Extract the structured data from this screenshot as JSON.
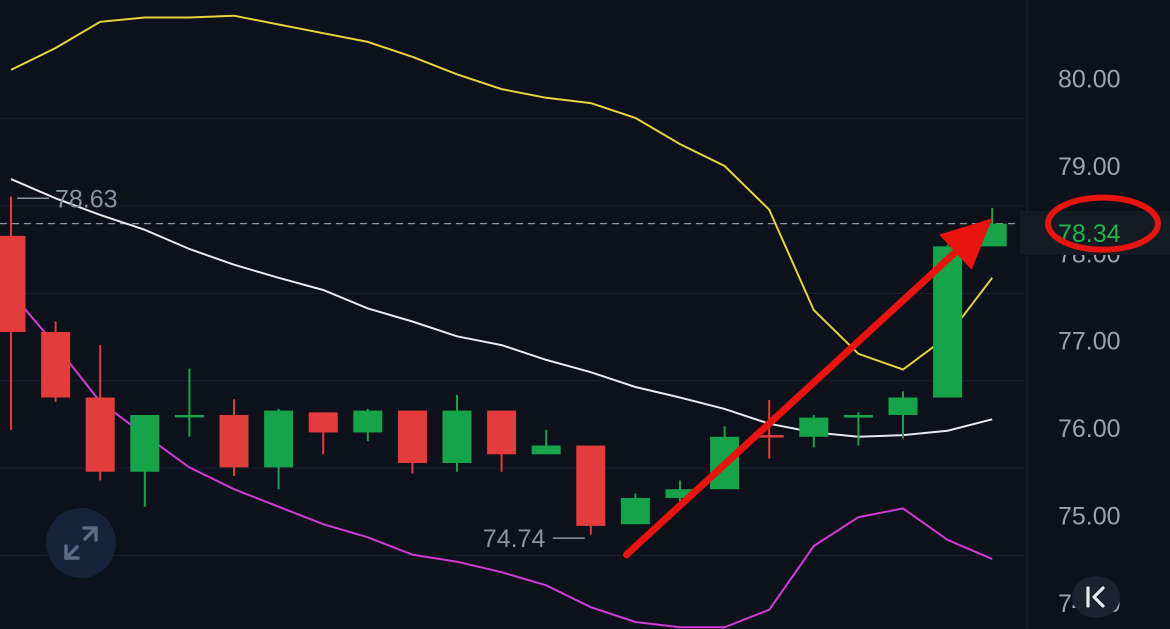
{
  "chart_data": {
    "type": "candlestick",
    "y_ticks": [
      "80.00",
      "79.00",
      "78.00",
      "77.00",
      "76.00",
      "75.00",
      "74.00"
    ],
    "ylim": [
      73.7,
      80.9
    ],
    "last_price": {
      "value": 78.34,
      "label": "78.34"
    },
    "high_marker": {
      "value": 78.63,
      "label": "78.63"
    },
    "low_marker": {
      "value": 74.74,
      "label": "74.74"
    },
    "candles": [
      {
        "o": 78.2,
        "h": 78.65,
        "l": 75.98,
        "c": 77.1
      },
      {
        "o": 77.1,
        "h": 77.22,
        "l": 76.3,
        "c": 76.35
      },
      {
        "o": 76.35,
        "h": 76.95,
        "l": 75.4,
        "c": 75.5
      },
      {
        "o": 75.5,
        "h": 76.15,
        "l": 75.1,
        "c": 76.15
      },
      {
        "o": 76.15,
        "h": 76.68,
        "l": 75.9,
        "c": 76.15
      },
      {
        "o": 76.15,
        "h": 76.33,
        "l": 75.45,
        "c": 75.55
      },
      {
        "o": 75.55,
        "h": 76.22,
        "l": 75.3,
        "c": 76.2
      },
      {
        "o": 76.18,
        "h": 76.18,
        "l": 75.7,
        "c": 75.95
      },
      {
        "o": 75.95,
        "h": 76.22,
        "l": 75.85,
        "c": 76.2
      },
      {
        "o": 76.2,
        "h": 76.2,
        "l": 75.48,
        "c": 75.6
      },
      {
        "o": 75.6,
        "h": 76.38,
        "l": 75.5,
        "c": 76.2
      },
      {
        "o": 76.2,
        "h": 76.2,
        "l": 75.5,
        "c": 75.7
      },
      {
        "o": 75.7,
        "h": 75.98,
        "l": 75.7,
        "c": 75.8
      },
      {
        "o": 75.8,
        "h": 75.8,
        "l": 74.78,
        "c": 74.88
      },
      {
        "o": 74.9,
        "h": 75.25,
        "l": 74.9,
        "c": 75.2
      },
      {
        "o": 75.2,
        "h": 75.4,
        "l": 75.1,
        "c": 75.3
      },
      {
        "o": 75.3,
        "h": 76.02,
        "l": 75.3,
        "c": 75.9
      },
      {
        "o": 75.92,
        "h": 76.32,
        "l": 75.65,
        "c": 75.9
      },
      {
        "o": 75.9,
        "h": 76.15,
        "l": 75.78,
        "c": 76.12
      },
      {
        "o": 76.12,
        "h": 76.18,
        "l": 75.8,
        "c": 76.15
      },
      {
        "o": 76.15,
        "h": 76.42,
        "l": 75.88,
        "c": 76.35
      },
      {
        "o": 76.35,
        "h": 78.1,
        "l": 76.35,
        "c": 78.08
      },
      {
        "o": 78.08,
        "h": 78.52,
        "l": 78.08,
        "c": 78.34
      }
    ],
    "series": [
      {
        "key": "upper",
        "color": "#e8d43a",
        "values": [
          80.1,
          80.35,
          80.65,
          80.7,
          80.7,
          80.72,
          80.62,
          80.52,
          80.42,
          80.25,
          80.05,
          79.88,
          79.78,
          79.72,
          79.55,
          79.25,
          79.0,
          78.5,
          77.35,
          76.85,
          76.67,
          77.05,
          77.72
        ]
      },
      {
        "key": "middle",
        "color": "#e8e8ee",
        "values": [
          78.85,
          78.63,
          78.44,
          78.27,
          78.05,
          77.87,
          77.72,
          77.58,
          77.37,
          77.22,
          77.05,
          76.95,
          76.78,
          76.64,
          76.47,
          76.35,
          76.22,
          76.05,
          75.95,
          75.9,
          75.92,
          75.97,
          76.1
        ]
      },
      {
        "key": "lower",
        "color": "#d13bd6",
        "values": [
          77.55,
          76.95,
          76.3,
          75.92,
          75.55,
          75.3,
          75.1,
          74.9,
          74.75,
          74.55,
          74.47,
          74.35,
          74.2,
          73.95,
          73.78,
          73.72,
          73.72,
          73.92,
          74.65,
          74.98,
          75.08,
          74.72,
          74.5
        ]
      }
    ],
    "annotation": {
      "type": "arrow",
      "color": "#e8140f",
      "from_index": 13.8,
      "from_value": 74.55,
      "to_index": 22.0,
      "to_value": 78.4
    }
  },
  "controls": {
    "expand_icon": "expand-icon",
    "collapse_icon": "collapse-to-start-icon"
  }
}
